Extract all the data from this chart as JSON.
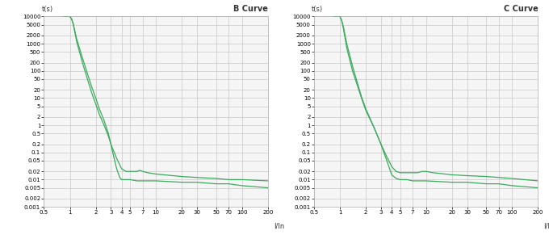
{
  "title_B": "B Curve",
  "title_C": "C Curve",
  "ylabel": "t(s)",
  "xlabel": "I/In",
  "line_color": "#3aaa5c",
  "bg_color": "#ffffff",
  "grid_color": "#c8c8c8",
  "plot_bg": "#f5f5f5",
  "x_ticks": [
    0.5,
    1,
    2,
    3,
    4,
    5,
    7,
    10,
    20,
    30,
    50,
    70,
    100,
    200
  ],
  "x_tick_labels": [
    "0.5",
    "1",
    "2",
    "3",
    "4",
    "5",
    "7",
    "10",
    "20",
    "30",
    "50",
    "70",
    "100",
    "200"
  ],
  "y_ticks": [
    0.001,
    0.002,
    0.005,
    0.01,
    0.02,
    0.05,
    0.1,
    0.2,
    0.5,
    1,
    2,
    5,
    10,
    20,
    50,
    100,
    200,
    500,
    1000,
    2000,
    5000,
    10000
  ],
  "y_tick_labels": [
    "0.001",
    "0.002",
    "0.005",
    "0.01",
    "0.02",
    "0.05",
    "0.1",
    "0.2",
    "0.5",
    "1",
    "2",
    "5",
    "10",
    "20",
    "50",
    "100",
    "200",
    "500",
    "1000",
    "2000",
    "5000",
    "10000"
  ],
  "xlim": [
    0.5,
    200
  ],
  "ylim": [
    0.001,
    10000
  ],
  "B_lower_x": [
    1.0,
    1.05,
    1.1,
    1.2,
    1.4,
    1.6,
    1.8,
    2.0,
    2.2,
    2.5,
    2.8,
    3.0,
    3.2,
    3.5,
    3.8,
    4.0,
    4.2,
    4.5,
    5.0,
    6.0,
    7.0,
    10.0,
    20.0,
    30.0,
    50.0,
    70.0,
    100.0,
    200.0
  ],
  "B_lower_y": [
    10000,
    8000,
    5000,
    1500,
    300,
    80,
    25,
    10,
    4,
    1.5,
    0.5,
    0.2,
    0.08,
    0.025,
    0.012,
    0.01,
    0.01,
    0.01,
    0.01,
    0.009,
    0.009,
    0.009,
    0.008,
    0.008,
    0.007,
    0.007,
    0.006,
    0.005
  ],
  "B_upper_x": [
    0.85,
    0.9,
    0.95,
    1.0,
    1.05,
    1.1,
    1.2,
    1.4,
    1.6,
    1.8,
    2.0,
    2.2,
    2.5,
    2.8,
    3.0,
    3.5,
    4.0,
    4.5,
    5.0,
    5.5,
    6.0,
    6.5,
    7.0,
    7.0,
    8.0,
    10.0,
    20.0,
    30.0,
    50.0,
    70.0,
    100.0,
    200.0
  ],
  "B_upper_y": [
    10000,
    10000,
    10000,
    10000,
    8000,
    5000,
    1200,
    200,
    50,
    15,
    6,
    2.5,
    1.0,
    0.4,
    0.2,
    0.06,
    0.025,
    0.02,
    0.02,
    0.02,
    0.02,
    0.022,
    0.02,
    0.02,
    0.018,
    0.016,
    0.013,
    0.012,
    0.011,
    0.01,
    0.01,
    0.009
  ],
  "C_lower_x": [
    1.0,
    1.05,
    1.1,
    1.2,
    1.4,
    1.6,
    1.8,
    2.0,
    2.5,
    3.0,
    3.5,
    4.0,
    4.5,
    5.0,
    5.2,
    5.5,
    6.0,
    7.0,
    10.0,
    20.0,
    30.0,
    50.0,
    70.0,
    100.0,
    200.0
  ],
  "C_lower_y": [
    10000,
    7000,
    4000,
    1000,
    150,
    35,
    10,
    4,
    0.8,
    0.2,
    0.05,
    0.015,
    0.011,
    0.01,
    0.01,
    0.01,
    0.01,
    0.009,
    0.009,
    0.008,
    0.008,
    0.007,
    0.007,
    0.006,
    0.005
  ],
  "C_upper_x": [
    0.85,
    0.9,
    0.95,
    1.0,
    1.05,
    1.1,
    1.2,
    1.4,
    1.6,
    1.8,
    2.0,
    2.5,
    3.0,
    3.5,
    4.0,
    4.5,
    5.0,
    5.5,
    6.0,
    7.0,
    8.0,
    9.0,
    9.5,
    10.0,
    10.0,
    12.0,
    20.0,
    30.0,
    50.0,
    70.0,
    100.0,
    200.0
  ],
  "C_upper_y": [
    10000,
    10000,
    10000,
    10000,
    7000,
    3500,
    700,
    100,
    28,
    9,
    3.5,
    0.8,
    0.2,
    0.07,
    0.03,
    0.02,
    0.018,
    0.018,
    0.018,
    0.018,
    0.018,
    0.02,
    0.02,
    0.02,
    0.02,
    0.018,
    0.015,
    0.014,
    0.013,
    0.012,
    0.011,
    0.009
  ]
}
